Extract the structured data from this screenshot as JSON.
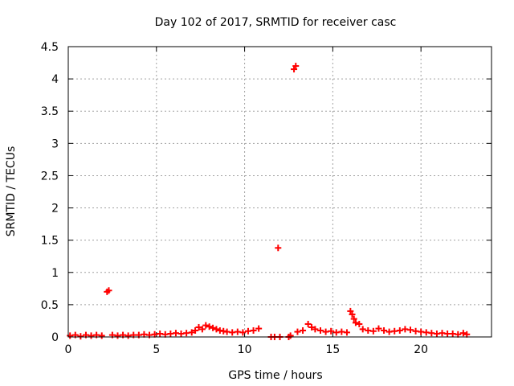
{
  "chart_data": {
    "type": "scatter",
    "title": "Day 102 of 2017, SRMTID for receiver casc",
    "xlabel": "GPS time / hours",
    "ylabel": "SRMTID / TECUs",
    "xlim": [
      0,
      24
    ],
    "ylim": [
      0,
      4.5
    ],
    "x_ticks": [
      0,
      5,
      10,
      15,
      20
    ],
    "x_tick_labels": [
      "0",
      "5",
      "10",
      "15",
      "20"
    ],
    "y_ticks": [
      0,
      0.5,
      1,
      1.5,
      2,
      2.5,
      3,
      3.5,
      4,
      4.5
    ],
    "y_tick_labels": [
      "0",
      "0.5",
      "1",
      "1.5",
      "2",
      "2.5",
      "3",
      "3.5",
      "4",
      "4.5"
    ],
    "grid": true,
    "marker": "plus",
    "color": "#ff0000",
    "series": [
      {
        "points": [
          [
            0.1,
            0.02
          ],
          [
            0.4,
            0.03
          ],
          [
            0.7,
            0.01
          ],
          [
            1.0,
            0.03
          ],
          [
            1.3,
            0.02
          ],
          [
            1.6,
            0.03
          ],
          [
            1.9,
            0.02
          ],
          [
            2.2,
            0.7
          ],
          [
            2.3,
            0.72
          ],
          [
            2.5,
            0.03
          ],
          [
            2.8,
            0.02
          ],
          [
            3.1,
            0.03
          ],
          [
            3.4,
            0.02
          ],
          [
            3.7,
            0.03
          ],
          [
            4.0,
            0.03
          ],
          [
            4.3,
            0.04
          ],
          [
            4.6,
            0.03
          ],
          [
            4.9,
            0.04
          ],
          [
            5.2,
            0.05
          ],
          [
            5.5,
            0.04
          ],
          [
            5.8,
            0.05
          ],
          [
            6.1,
            0.06
          ],
          [
            6.4,
            0.05
          ],
          [
            6.7,
            0.06
          ],
          [
            7.0,
            0.07
          ],
          [
            7.2,
            0.1
          ],
          [
            7.4,
            0.15
          ],
          [
            7.6,
            0.12
          ],
          [
            7.8,
            0.18
          ],
          [
            8.0,
            0.16
          ],
          [
            8.2,
            0.14
          ],
          [
            8.4,
            0.12
          ],
          [
            8.6,
            0.1
          ],
          [
            8.8,
            0.09
          ],
          [
            9.0,
            0.08
          ],
          [
            9.3,
            0.07
          ],
          [
            9.6,
            0.08
          ],
          [
            9.9,
            0.07
          ],
          [
            10.2,
            0.09
          ],
          [
            10.5,
            0.1
          ],
          [
            10.8,
            0.13
          ],
          [
            11.5,
            0.0
          ],
          [
            11.7,
            0.0
          ],
          [
            11.9,
            1.38
          ],
          [
            12.0,
            0.0
          ],
          [
            12.5,
            0.0
          ],
          [
            12.6,
            0.02
          ],
          [
            12.8,
            4.15
          ],
          [
            12.9,
            4.2
          ],
          [
            13.0,
            0.08
          ],
          [
            13.3,
            0.1
          ],
          [
            13.6,
            0.2
          ],
          [
            13.8,
            0.15
          ],
          [
            14.0,
            0.12
          ],
          [
            14.3,
            0.1
          ],
          [
            14.6,
            0.08
          ],
          [
            14.9,
            0.09
          ],
          [
            15.2,
            0.07
          ],
          [
            15.5,
            0.08
          ],
          [
            15.8,
            0.07
          ],
          [
            16.0,
            0.4
          ],
          [
            16.1,
            0.35
          ],
          [
            16.2,
            0.28
          ],
          [
            16.3,
            0.22
          ],
          [
            16.5,
            0.2
          ],
          [
            16.7,
            0.12
          ],
          [
            17.0,
            0.1
          ],
          [
            17.3,
            0.09
          ],
          [
            17.6,
            0.13
          ],
          [
            17.9,
            0.1
          ],
          [
            18.2,
            0.08
          ],
          [
            18.5,
            0.09
          ],
          [
            18.8,
            0.1
          ],
          [
            19.1,
            0.12
          ],
          [
            19.4,
            0.11
          ],
          [
            19.7,
            0.09
          ],
          [
            20.0,
            0.08
          ],
          [
            20.3,
            0.07
          ],
          [
            20.6,
            0.06
          ],
          [
            20.9,
            0.05
          ],
          [
            21.2,
            0.06
          ],
          [
            21.5,
            0.05
          ],
          [
            21.8,
            0.05
          ],
          [
            22.1,
            0.04
          ],
          [
            22.4,
            0.06
          ],
          [
            22.6,
            0.04
          ]
        ]
      }
    ]
  }
}
